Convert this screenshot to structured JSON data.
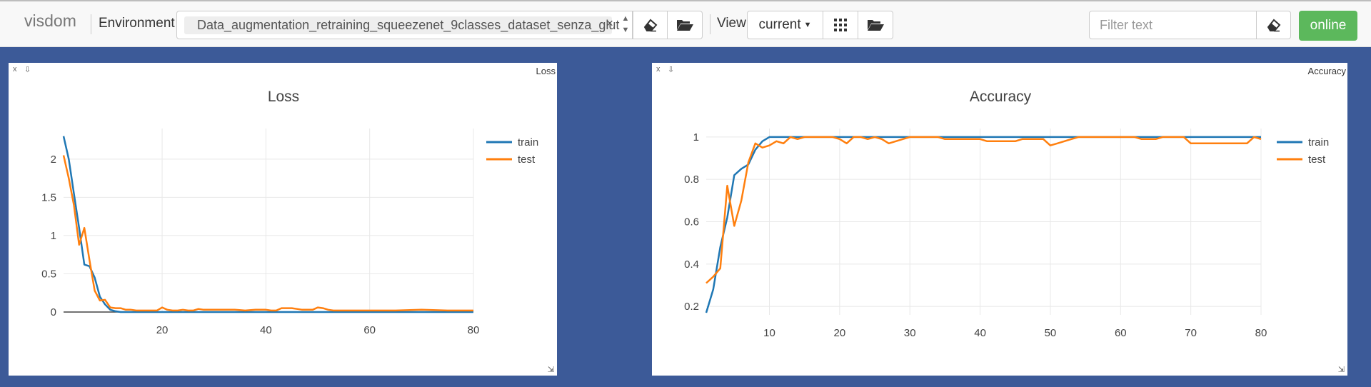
{
  "navbar": {
    "brand": "visdom",
    "environment_label": "Environment",
    "environment_value": "Data_augmentation_retraining_squeezenet_9classes_dataset_senza_glut",
    "environment_remove": "×",
    "view_label": "View",
    "view_value": "current",
    "filter_placeholder": "Filter text",
    "status": "online"
  },
  "panes": {
    "loss": {
      "corner_title": "Loss",
      "close": "x",
      "pin": "⇩",
      "resize": "⇲"
    },
    "accuracy": {
      "corner_title": "Accuracy",
      "close": "x",
      "pin": "⇩",
      "resize": "⇲"
    }
  },
  "colors": {
    "train": "#1f77b4",
    "test": "#ff7f0e"
  },
  "chart_data": [
    {
      "type": "line",
      "title": "Loss",
      "xlim": [
        1,
        80
      ],
      "ylim": [
        0,
        2.4
      ],
      "xticks": [
        20,
        40,
        60,
        80
      ],
      "yticks": [
        0,
        0.5,
        1,
        1.5,
        2
      ],
      "ytick_labels": [
        "0",
        "0.5",
        "1",
        "1.5",
        "2"
      ],
      "grid": true,
      "legend_position": "top-right",
      "series": [
        {
          "name": "train",
          "color": "#1f77b4",
          "x": [
            1,
            2,
            3,
            4,
            5,
            6,
            7,
            8,
            9,
            10,
            11,
            12,
            13,
            14,
            15,
            20,
            30,
            40,
            50,
            60,
            70,
            80
          ],
          "y": [
            2.3,
            2.0,
            1.55,
            1.1,
            0.62,
            0.6,
            0.45,
            0.2,
            0.1,
            0.03,
            0.01,
            0,
            0,
            0,
            0,
            0,
            0,
            0,
            0,
            0,
            0,
            0
          ]
        },
        {
          "name": "test",
          "color": "#ff7f0e",
          "x": [
            1,
            2,
            3,
            4,
            5,
            6,
            7,
            8,
            9,
            10,
            11,
            12,
            13,
            14,
            15,
            16,
            17,
            18,
            19,
            20,
            21,
            22,
            23,
            24,
            25,
            26,
            27,
            28,
            29,
            30,
            32,
            34,
            36,
            38,
            40,
            41,
            42,
            43,
            44,
            45,
            46,
            47,
            48,
            49,
            50,
            51,
            52,
            53,
            54,
            55,
            56,
            60,
            65,
            70,
            75,
            80
          ],
          "y": [
            2.05,
            1.75,
            1.4,
            0.88,
            1.1,
            0.68,
            0.28,
            0.15,
            0.16,
            0.06,
            0.05,
            0.05,
            0.03,
            0.03,
            0.02,
            0.02,
            0.02,
            0.02,
            0.02,
            0.06,
            0.03,
            0.02,
            0.02,
            0.03,
            0.02,
            0.02,
            0.04,
            0.03,
            0.03,
            0.03,
            0.03,
            0.03,
            0.02,
            0.03,
            0.03,
            0.02,
            0.02,
            0.05,
            0.05,
            0.05,
            0.04,
            0.03,
            0.03,
            0.03,
            0.06,
            0.05,
            0.03,
            0.02,
            0.02,
            0.02,
            0.02,
            0.02,
            0.02,
            0.03,
            0.02,
            0.02
          ]
        }
      ]
    },
    {
      "type": "line",
      "title": "Accuracy",
      "xlim": [
        1,
        80
      ],
      "ylim": [
        0.16,
        1.04
      ],
      "xticks": [
        10,
        20,
        30,
        40,
        50,
        60,
        70,
        80
      ],
      "yticks": [
        0.2,
        0.4,
        0.6,
        0.8,
        1
      ],
      "ytick_labels": [
        "0.2",
        "0.4",
        "0.6",
        "0.8",
        "1"
      ],
      "grid": true,
      "legend_position": "top-right",
      "series": [
        {
          "name": "train",
          "color": "#1f77b4",
          "x": [
            1,
            2,
            3,
            4,
            5,
            6,
            7,
            8,
            9,
            10,
            11,
            20,
            30,
            40,
            50,
            60,
            70,
            80
          ],
          "y": [
            0.17,
            0.28,
            0.48,
            0.62,
            0.82,
            0.85,
            0.87,
            0.94,
            0.98,
            1.0,
            1.0,
            1.0,
            1.0,
            1.0,
            1.0,
            1.0,
            1.0,
            1.0
          ]
        },
        {
          "name": "test",
          "color": "#ff7f0e",
          "x": [
            1,
            2,
            3,
            4,
            5,
            6,
            7,
            8,
            9,
            10,
            11,
            12,
            13,
            14,
            15,
            16,
            17,
            18,
            19,
            20,
            21,
            22,
            23,
            24,
            25,
            26,
            27,
            28,
            29,
            30,
            31,
            32,
            33,
            34,
            35,
            36,
            37,
            38,
            39,
            40,
            41,
            42,
            43,
            44,
            45,
            46,
            47,
            48,
            49,
            50,
            51,
            52,
            53,
            54,
            55,
            56,
            57,
            58,
            59,
            60,
            61,
            62,
            63,
            64,
            65,
            66,
            67,
            68,
            69,
            70,
            71,
            72,
            73,
            74,
            75,
            76,
            77,
            78,
            79,
            80
          ],
          "y": [
            0.31,
            0.34,
            0.38,
            0.77,
            0.58,
            0.7,
            0.88,
            0.97,
            0.95,
            0.96,
            0.98,
            0.97,
            1.0,
            0.99,
            1.0,
            1.0,
            1.0,
            1.0,
            1.0,
            0.99,
            0.97,
            1.0,
            1.0,
            0.99,
            1.0,
            0.99,
            0.97,
            0.98,
            0.99,
            1.0,
            1.0,
            1.0,
            1.0,
            1.0,
            0.99,
            0.99,
            0.99,
            0.99,
            0.99,
            0.99,
            0.98,
            0.98,
            0.98,
            0.98,
            0.98,
            0.99,
            0.99,
            0.99,
            0.99,
            0.96,
            0.97,
            0.98,
            0.99,
            1.0,
            1.0,
            1.0,
            1.0,
            1.0,
            1.0,
            1.0,
            1.0,
            1.0,
            0.99,
            0.99,
            0.99,
            1.0,
            1.0,
            1.0,
            1.0,
            0.97,
            0.97,
            0.97,
            0.97,
            0.97,
            0.97,
            0.97,
            0.97,
            0.97,
            1.0,
            0.99
          ]
        }
      ]
    }
  ]
}
